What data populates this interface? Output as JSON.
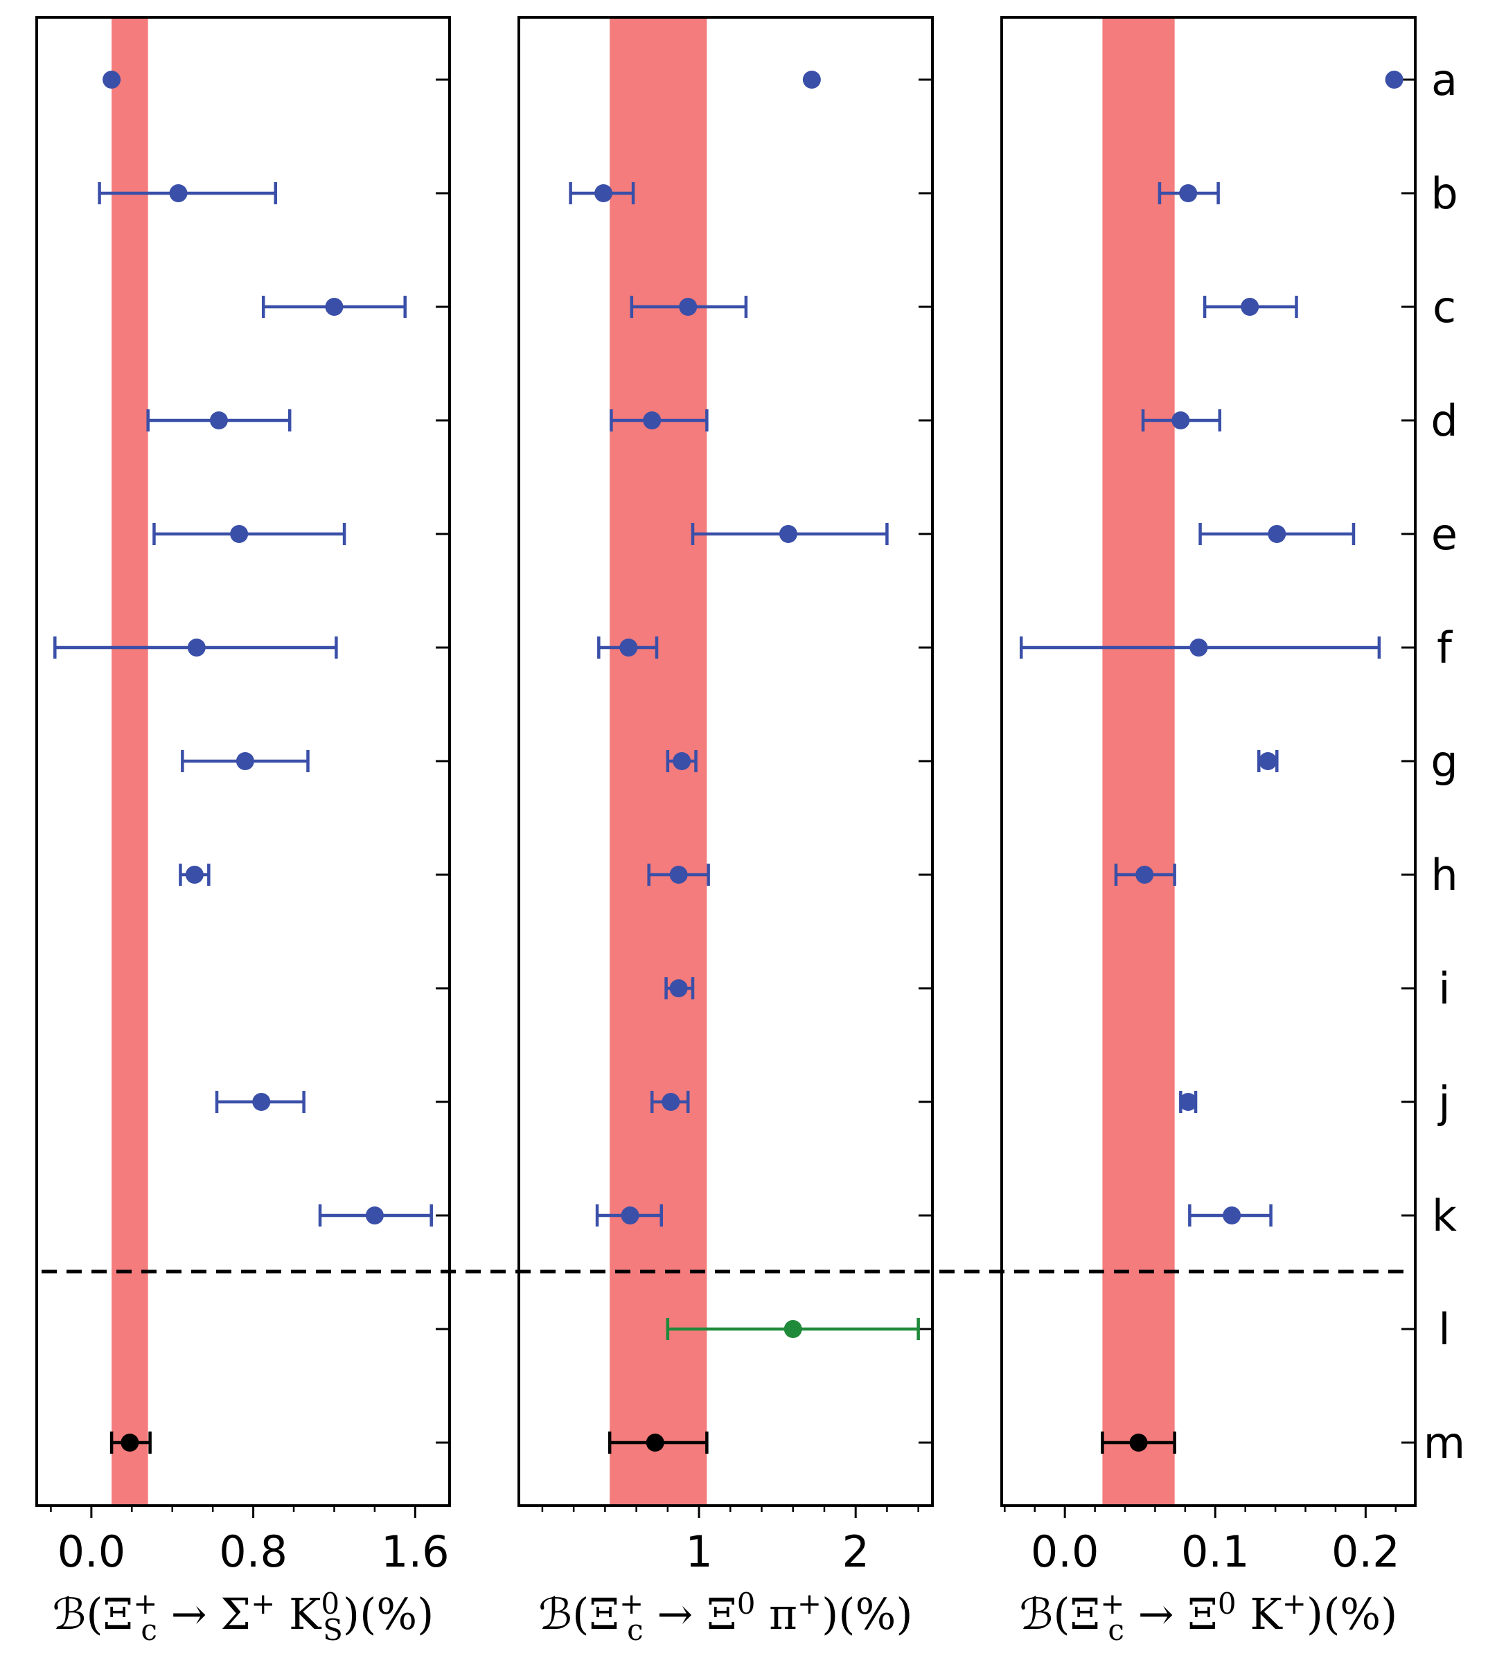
{
  "row_labels": [
    "a",
    "b",
    "c",
    "d",
    "e",
    "f",
    "g",
    "h",
    "i",
    "j",
    "k",
    "l",
    "m"
  ],
  "colors": {
    "points": "#3a4fa8",
    "green": "#1f8a3a",
    "black": "#000000",
    "band": "#f47c7c",
    "divider": "#000000"
  },
  "chart_data": [
    {
      "type": "scatter",
      "name": "Sigma+ KS0",
      "xlabel": {
        "prefix": "ℬ(Ξ",
        "sup_c": "+",
        "sub_c": "c",
        "mid": " → Σ",
        "sup2": "+",
        "mid2": "K",
        "sup3": "0",
        "sub3": "S",
        "suffix": ")(%)"
      },
      "xlim": [
        -0.27,
        1.77
      ],
      "xticks": [
        0.0,
        0.8,
        1.6
      ],
      "xtick_labels": [
        "0.0",
        "0.8",
        "1.6"
      ],
      "minor_ticks": [
        -0.2,
        0.2,
        0.4,
        0.6,
        1.0,
        1.2,
        1.4
      ],
      "band": [
        0.1,
        0.28
      ],
      "points": [
        {
          "row": "a",
          "value": 0.1,
          "err_low": null,
          "err_high": null,
          "color": "points"
        },
        {
          "row": "b",
          "value": 0.43,
          "err_low": 0.04,
          "err_high": 0.91,
          "color": "points"
        },
        {
          "row": "c",
          "value": 1.2,
          "err_low": 0.85,
          "err_high": 1.55,
          "color": "points"
        },
        {
          "row": "d",
          "value": 0.63,
          "err_low": 0.28,
          "err_high": 0.98,
          "color": "points"
        },
        {
          "row": "e",
          "value": 0.73,
          "err_low": 0.31,
          "err_high": 1.25,
          "color": "points"
        },
        {
          "row": "f",
          "value": 0.52,
          "err_low": -0.18,
          "err_high": 1.21,
          "color": "points"
        },
        {
          "row": "g",
          "value": 0.76,
          "err_low": 0.45,
          "err_high": 1.07,
          "color": "points"
        },
        {
          "row": "h",
          "value": 0.51,
          "err_low": 0.44,
          "err_high": 0.58,
          "color": "points"
        },
        {
          "row": "j",
          "value": 0.84,
          "err_low": 0.62,
          "err_high": 1.05,
          "color": "points"
        },
        {
          "row": "k",
          "value": 1.4,
          "err_low": 1.13,
          "err_high": 1.68,
          "color": "points"
        },
        {
          "row": "m",
          "value": 0.19,
          "err_low": 0.1,
          "err_high": 0.29,
          "color": "black"
        }
      ]
    },
    {
      "type": "scatter",
      "name": "Xi0 pi+",
      "xlabel": {
        "prefix": "ℬ(Ξ",
        "sup_c": "+",
        "sub_c": "c",
        "mid": " → Ξ",
        "sup2": "0",
        "mid2": "π",
        "sup3": "+",
        "sub3": "",
        "suffix": ")(%)"
      },
      "xlim": [
        -0.15,
        2.49
      ],
      "xticks": [
        1,
        2
      ],
      "xtick_labels": [
        "1",
        "2"
      ],
      "minor_ticks": [
        0.0,
        0.2,
        0.4,
        0.6,
        0.8,
        1.2,
        1.4,
        1.6,
        1.8,
        2.2,
        2.4
      ],
      "band": [
        0.43,
        1.05
      ],
      "points": [
        {
          "row": "a",
          "value": 1.72,
          "err_low": null,
          "err_high": null,
          "color": "points"
        },
        {
          "row": "b",
          "value": 0.39,
          "err_low": 0.18,
          "err_high": 0.58,
          "color": "points"
        },
        {
          "row": "c",
          "value": 0.93,
          "err_low": 0.57,
          "err_high": 1.3,
          "color": "points"
        },
        {
          "row": "d",
          "value": 0.7,
          "err_low": 0.44,
          "err_high": 1.05,
          "color": "points"
        },
        {
          "row": "e",
          "value": 1.57,
          "err_low": 0.96,
          "err_high": 2.2,
          "color": "points"
        },
        {
          "row": "f",
          "value": 0.55,
          "err_low": 0.36,
          "err_high": 0.73,
          "color": "points"
        },
        {
          "row": "g",
          "value": 0.89,
          "err_low": 0.8,
          "err_high": 0.98,
          "color": "points"
        },
        {
          "row": "h",
          "value": 0.87,
          "err_low": 0.68,
          "err_high": 1.06,
          "color": "points"
        },
        {
          "row": "i",
          "value": 0.87,
          "err_low": 0.79,
          "err_high": 0.96,
          "color": "points"
        },
        {
          "row": "j",
          "value": 0.82,
          "err_low": 0.7,
          "err_high": 0.93,
          "color": "points"
        },
        {
          "row": "k",
          "value": 0.56,
          "err_low": 0.35,
          "err_high": 0.76,
          "color": "points"
        },
        {
          "row": "l",
          "value": 1.6,
          "err_low": 0.8,
          "err_high": 2.4,
          "color": "green"
        },
        {
          "row": "m",
          "value": 0.72,
          "err_low": 0.43,
          "err_high": 1.05,
          "color": "black"
        }
      ]
    },
    {
      "type": "scatter",
      "name": "Xi0 K+",
      "xlabel": {
        "prefix": "ℬ(Ξ",
        "sup_c": "+",
        "sub_c": "c",
        "mid": " → Ξ",
        "sup2": "0",
        "mid2": "K",
        "sup3": "+",
        "sub3": "",
        "suffix": ")(%)"
      },
      "xlim": [
        -0.042,
        0.233
      ],
      "xticks": [
        0.0,
        0.1,
        0.2
      ],
      "xtick_labels": [
        "0.0",
        "0.1",
        "0.2"
      ],
      "minor_ticks": [
        -0.04,
        -0.02,
        0.02,
        0.04,
        0.06,
        0.08,
        0.12,
        0.14,
        0.16,
        0.18,
        0.22
      ],
      "band": [
        0.025,
        0.073
      ],
      "points": [
        {
          "row": "a",
          "value": 0.219,
          "err_low": null,
          "err_high": null,
          "color": "points"
        },
        {
          "row": "b",
          "value": 0.082,
          "err_low": 0.063,
          "err_high": 0.102,
          "color": "points"
        },
        {
          "row": "c",
          "value": 0.123,
          "err_low": 0.093,
          "err_high": 0.154,
          "color": "points"
        },
        {
          "row": "d",
          "value": 0.077,
          "err_low": 0.052,
          "err_high": 0.103,
          "color": "points"
        },
        {
          "row": "e",
          "value": 0.141,
          "err_low": 0.09,
          "err_high": 0.192,
          "color": "points"
        },
        {
          "row": "f",
          "value": 0.089,
          "err_low": -0.029,
          "err_high": 0.209,
          "color": "points"
        },
        {
          "row": "g",
          "value": 0.135,
          "err_low": 0.129,
          "err_high": 0.141,
          "color": "points"
        },
        {
          "row": "h",
          "value": 0.053,
          "err_low": 0.034,
          "err_high": 0.073,
          "color": "points"
        },
        {
          "row": "j",
          "value": 0.082,
          "err_low": 0.077,
          "err_high": 0.087,
          "color": "points"
        },
        {
          "row": "k",
          "value": 0.111,
          "err_low": 0.083,
          "err_high": 0.137,
          "color": "points"
        },
        {
          "row": "m",
          "value": 0.049,
          "err_low": 0.025,
          "err_high": 0.073,
          "color": "black"
        }
      ]
    }
  ]
}
